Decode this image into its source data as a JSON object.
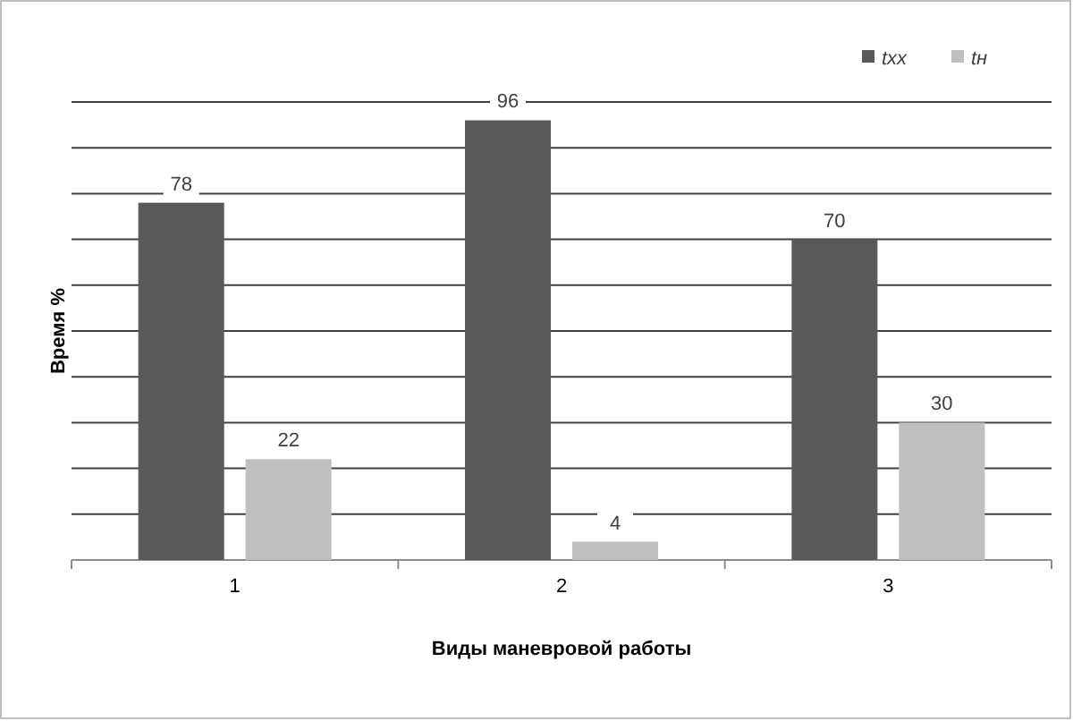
{
  "chart_data": {
    "type": "bar",
    "xlabel": "Виды маневровой  работы",
    "ylabel": "Время %",
    "categories": [
      "1",
      "2",
      "3"
    ],
    "series": [
      {
        "name": "txx",
        "color": "#595959",
        "values": [
          78,
          96,
          70
        ]
      },
      {
        "name": "tн",
        "color": "#bfbfbf",
        "values": [
          22,
          4,
          30
        ]
      }
    ],
    "ylim": [
      0,
      100
    ],
    "yticks": [
      {
        "value": 0,
        "label": null
      },
      {
        "value": 10,
        "label": null
      },
      {
        "value": 20,
        "label": null
      },
      {
        "value": 30,
        "label": null
      },
      {
        "value": 40,
        "label": null
      },
      {
        "value": 50,
        "label": null
      },
      {
        "value": 60,
        "label": null
      },
      {
        "value": 70,
        "label": null
      },
      {
        "value": 80,
        "label": null
      },
      {
        "value": 90,
        "label": null
      },
      {
        "value": 100,
        "label": null
      }
    ],
    "grid": "y",
    "legend": "top right",
    "data_labels": true,
    "tick_labels": "x"
  }
}
